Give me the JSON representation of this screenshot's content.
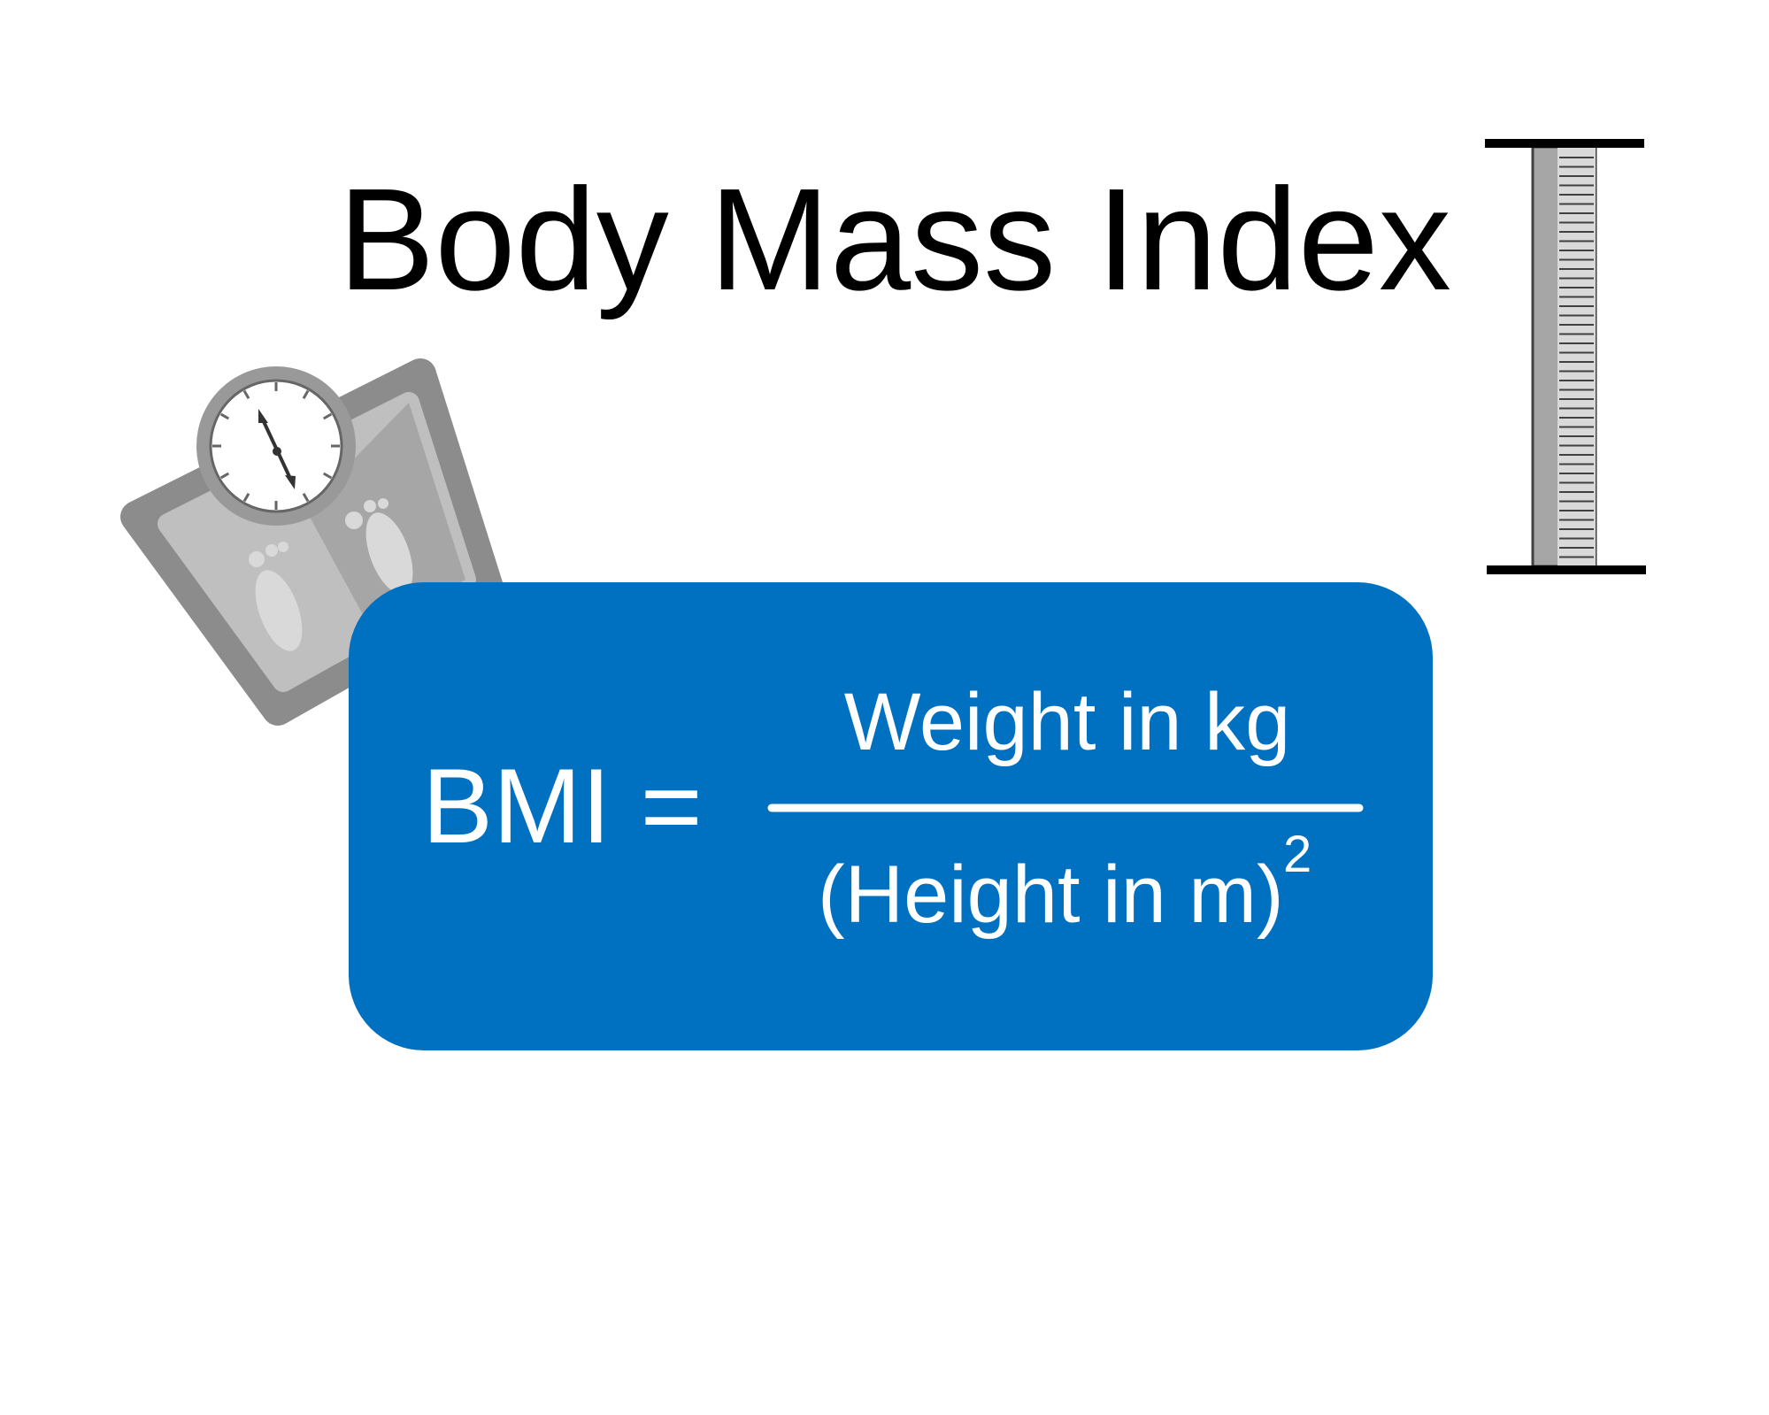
{
  "title": "Body Mass Index",
  "formula": {
    "lhs": "BMI =",
    "numerator": "Weight in kg",
    "denominator": "(Height in m)",
    "exponent": "2"
  }
}
